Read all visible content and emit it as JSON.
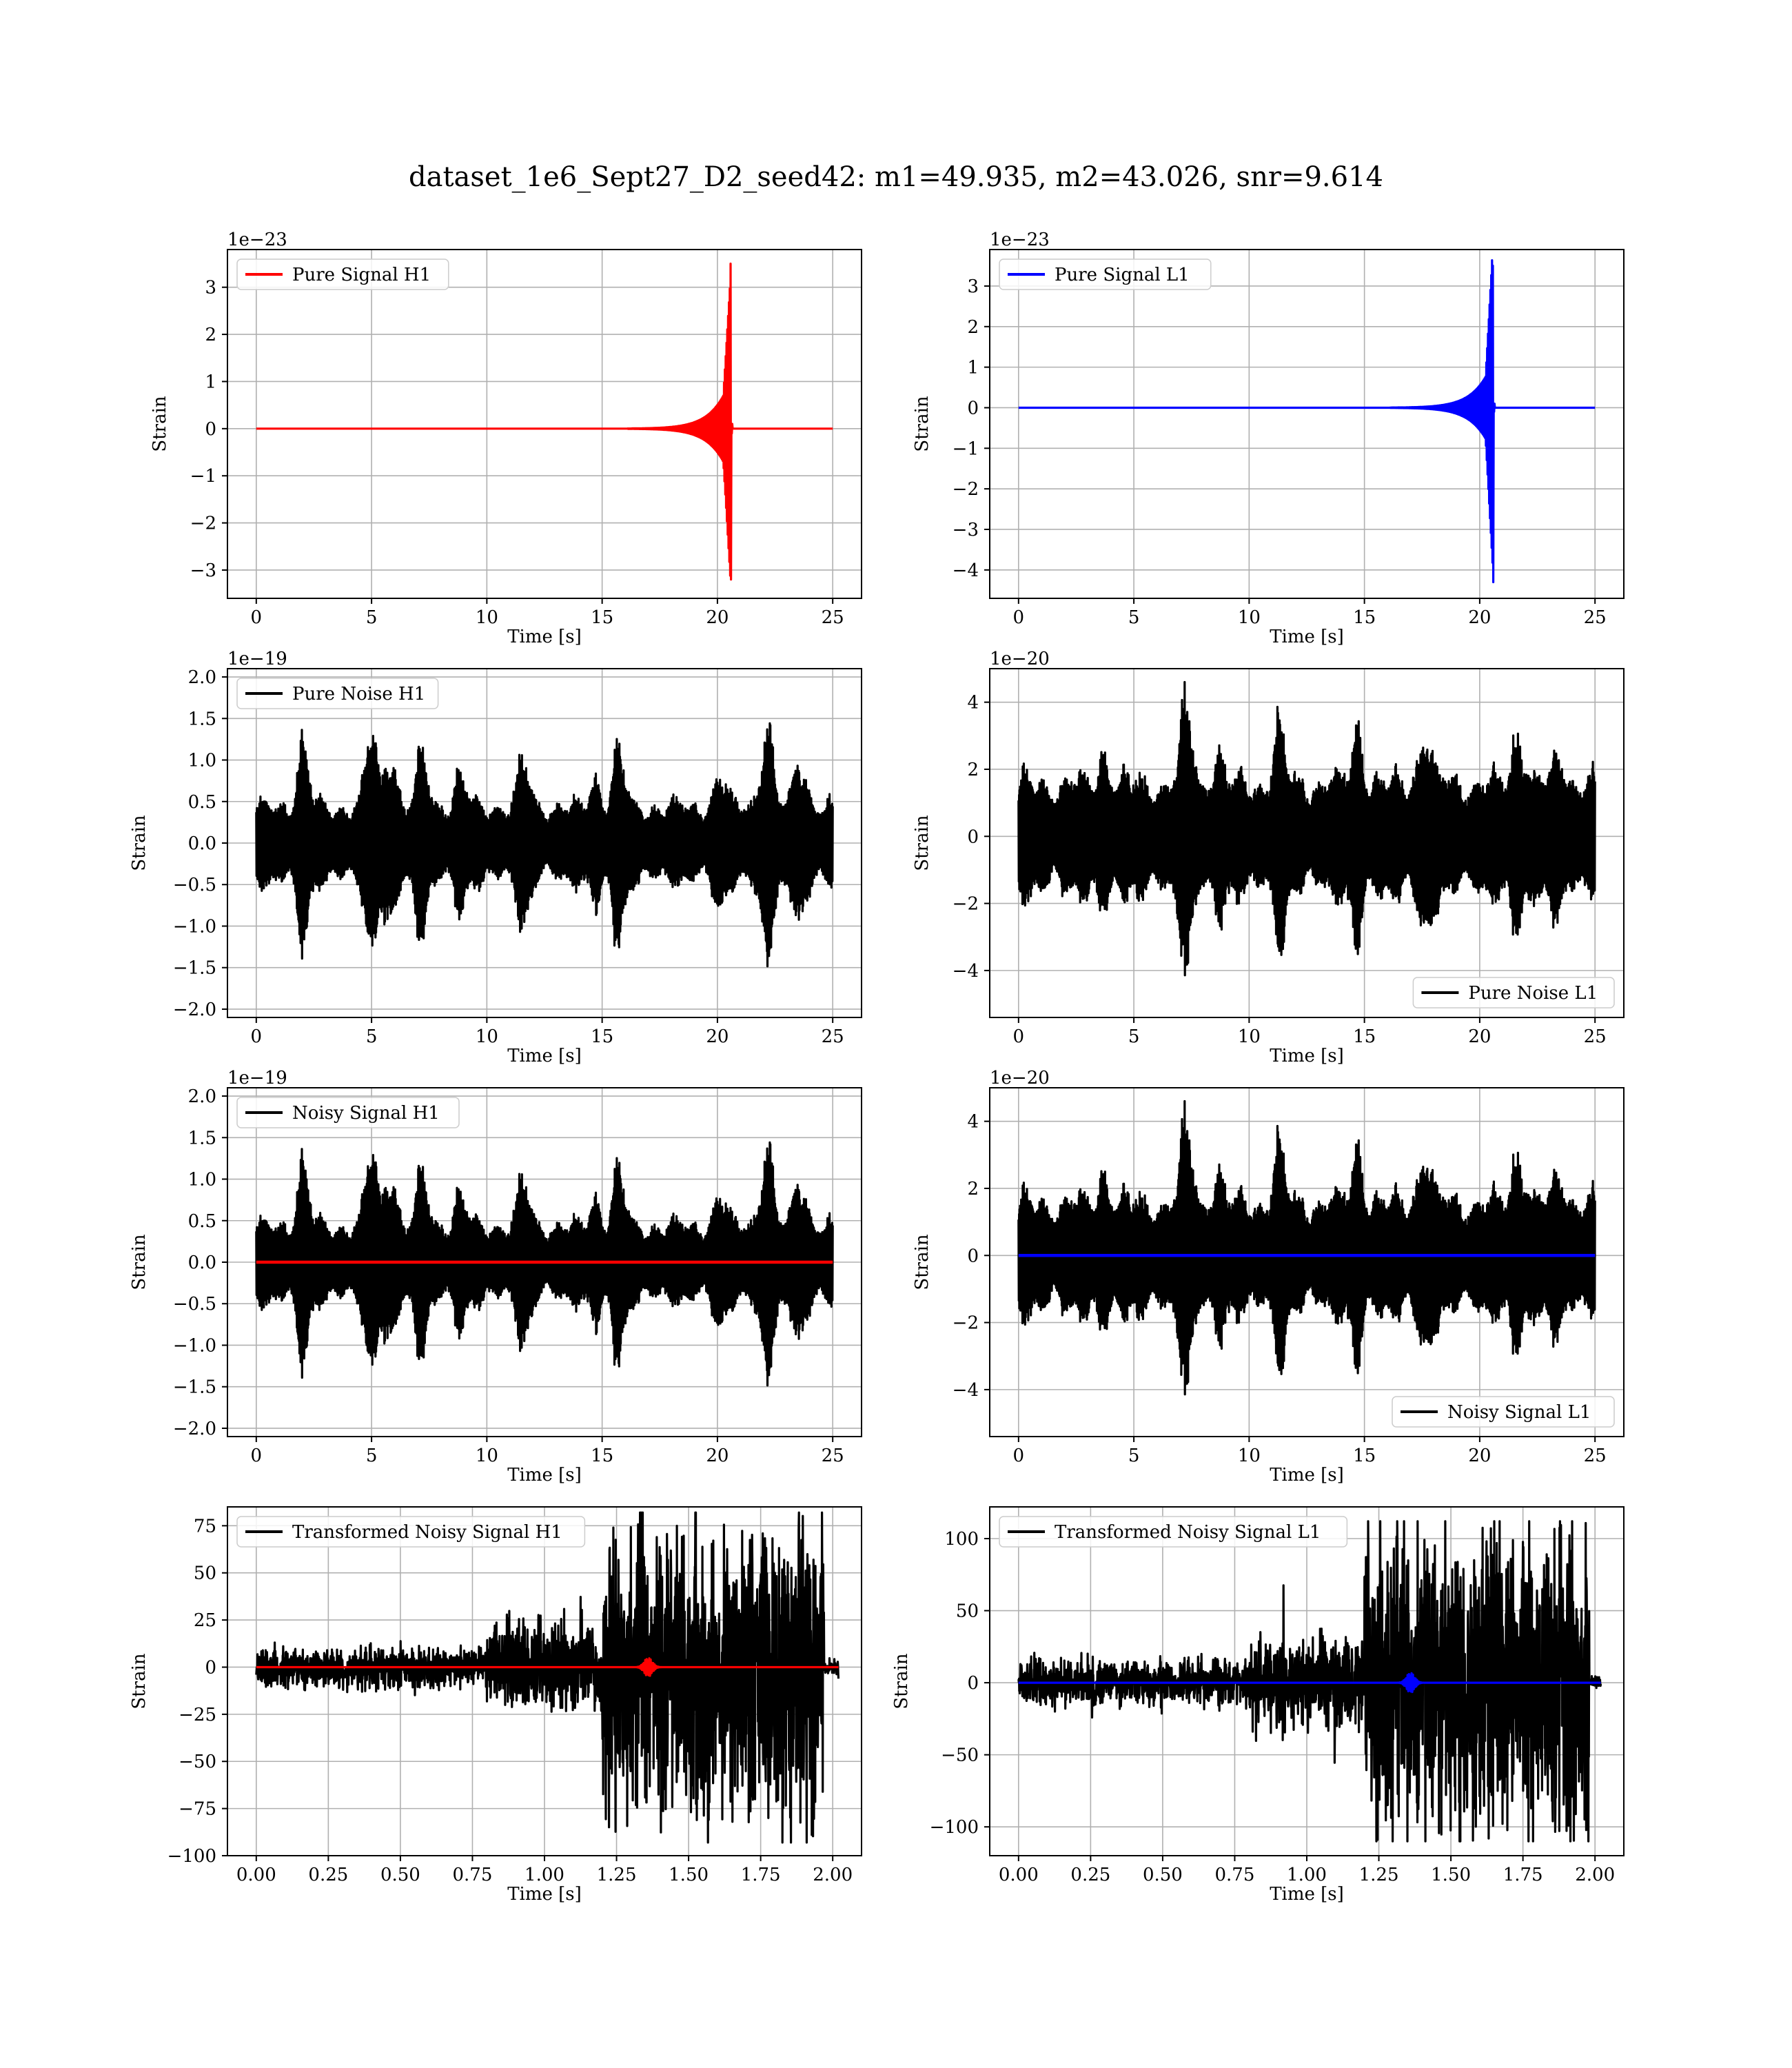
{
  "figure": {
    "title": "dataset_1e6_Sept27_D2_seed42: m1=49.935, m2=43.026, snr=9.614"
  },
  "chart_data": [
    {
      "type": "line",
      "title": "",
      "legend": [
        "Pure Signal H1"
      ],
      "legend_placement": "upper-left",
      "offset": "1e−23",
      "xlabel": "Time [s]",
      "ylabel": "Strain",
      "xlim": [
        -1.25,
        26.25
      ],
      "ylim": [
        -3.6,
        3.8
      ],
      "xticks": [
        0,
        5,
        10,
        15,
        20,
        25
      ],
      "xtick_labels": [
        "0",
        "5",
        "10",
        "15",
        "20",
        "25"
      ],
      "yticks": [
        -3,
        -2,
        -1,
        0,
        1,
        2,
        3
      ],
      "ytick_labels": [
        "−3",
        "−2",
        "−1",
        "0",
        "1",
        "2",
        "3"
      ],
      "grid": true,
      "series": [
        {
          "name": "Pure Signal H1",
          "color": "#ff0000",
          "kind": "chirp",
          "params": {
            "t0": 0,
            "t1": 25,
            "tc": 20.6,
            "peak_pos": 3.5,
            "peak_neg": -3.2,
            "plateau": 1.1,
            "ringdown": 0.1
          }
        }
      ]
    },
    {
      "type": "line",
      "title": "",
      "legend": [
        "Pure Signal L1"
      ],
      "legend_placement": "upper-left",
      "offset": "1e−23",
      "xlabel": "Time [s]",
      "ylabel": "Strain",
      "xlim": [
        -1.25,
        26.25
      ],
      "ylim": [
        -4.7,
        3.9
      ],
      "xticks": [
        0,
        5,
        10,
        15,
        20,
        25
      ],
      "xtick_labels": [
        "0",
        "5",
        "10",
        "15",
        "20",
        "25"
      ],
      "yticks": [
        -4,
        -3,
        -2,
        -1,
        0,
        1,
        2,
        3
      ],
      "ytick_labels": [
        "−4",
        "−3",
        "−2",
        "−1",
        "0",
        "1",
        "2",
        "3"
      ],
      "grid": true,
      "series": [
        {
          "name": "Pure Signal L1",
          "color": "#0000ff",
          "kind": "chirp",
          "params": {
            "t0": 0,
            "t1": 25,
            "tc": 20.6,
            "peak_pos": 3.5,
            "peak_neg": -4.3,
            "plateau": 1.2,
            "ringdown": 0.1
          }
        }
      ]
    },
    {
      "type": "line",
      "title": "",
      "legend": [
        "Pure Noise H1"
      ],
      "legend_placement": "upper-left",
      "offset": "1e−19",
      "xlabel": "Time [s]",
      "ylabel": "Strain",
      "xlim": [
        -1.25,
        26.25
      ],
      "ylim": [
        -2.1,
        2.1
      ],
      "xticks": [
        0,
        5,
        10,
        15,
        20,
        25
      ],
      "xtick_labels": [
        "0",
        "5",
        "10",
        "15",
        "20",
        "25"
      ],
      "yticks": [
        -2.0,
        -1.5,
        -1.0,
        -0.5,
        0.0,
        0.5,
        1.0,
        1.5,
        2.0
      ],
      "ytick_labels": [
        "−2.0",
        "−1.5",
        "−1.0",
        "−0.5",
        "0.0",
        "0.5",
        "1.0",
        "1.5",
        "2.0"
      ],
      "grid": true,
      "series": [
        {
          "name": "Pure Noise H1",
          "color": "#000000",
          "kind": "noise",
          "params": {
            "t0": 0,
            "t1": 25,
            "seed": 11,
            "env_base": 0.55,
            "env_peak": 1.95,
            "peaks": [
              [
                2.0,
                1.6
              ],
              [
                5.0,
                1.55
              ],
              [
                5.8,
                1.65
              ],
              [
                7.2,
                1.25
              ],
              [
                8.8,
                1.05
              ],
              [
                11.6,
                1.15
              ],
              [
                14.8,
                1.05
              ],
              [
                15.7,
                1.45
              ],
              [
                20.1,
                1.05
              ],
              [
                22.1,
                1.95
              ],
              [
                23.6,
                1.45
              ]
            ]
          }
        }
      ]
    },
    {
      "type": "line",
      "title": "",
      "legend": [
        "Pure Noise L1"
      ],
      "legend_placement": "lower-right",
      "offset": "1e−20",
      "xlabel": "Time [s]",
      "ylabel": "Strain",
      "xlim": [
        -1.25,
        26.25
      ],
      "ylim": [
        -5.4,
        5.0
      ],
      "xticks": [
        0,
        5,
        10,
        15,
        20,
        25
      ],
      "xtick_labels": [
        "0",
        "5",
        "10",
        "15",
        "20",
        "25"
      ],
      "yticks": [
        -4,
        -2,
        0,
        2,
        4
      ],
      "ytick_labels": [
        "−4",
        "−2",
        "0",
        "2",
        "4"
      ],
      "grid": true,
      "series": [
        {
          "name": "Pure Noise L1",
          "color": "#000000",
          "kind": "noise",
          "params": {
            "t0": 0,
            "t1": 25,
            "seed": 23,
            "env_base": 2.0,
            "env_peak": 4.6,
            "peaks": [
              [
                7.3,
                4.6
              ],
              [
                11.3,
                3.9
              ],
              [
                14.7,
                4.3
              ],
              [
                17.6,
                4.4
              ],
              [
                21.7,
                4.4
              ],
              [
                8.6,
                3.2
              ],
              [
                3.7,
                3.2
              ],
              [
                23.5,
                3.2
              ]
            ]
          }
        }
      ]
    },
    {
      "type": "line",
      "title": "",
      "legend": [
        "Noisy Signal H1"
      ],
      "legend_placement": "upper-left",
      "offset": "1e−19",
      "xlabel": "Time [s]",
      "ylabel": "Strain",
      "xlim": [
        -1.25,
        26.25
      ],
      "ylim": [
        -2.1,
        2.1
      ],
      "xticks": [
        0,
        5,
        10,
        15,
        20,
        25
      ],
      "xtick_labels": [
        "0",
        "5",
        "10",
        "15",
        "20",
        "25"
      ],
      "yticks": [
        -2.0,
        -1.5,
        -1.0,
        -0.5,
        0.0,
        0.5,
        1.0,
        1.5,
        2.0
      ],
      "ytick_labels": [
        "−2.0",
        "−1.5",
        "−1.0",
        "−0.5",
        "0.0",
        "0.5",
        "1.0",
        "1.5",
        "2.0"
      ],
      "grid": true,
      "series": [
        {
          "name": "Noisy Signal H1",
          "color": "#000000",
          "kind": "noise",
          "params": {
            "t0": 0,
            "t1": 25,
            "seed": 11,
            "env_base": 0.55,
            "env_peak": 1.95,
            "peaks": [
              [
                2.0,
                1.6
              ],
              [
                5.0,
                1.55
              ],
              [
                5.8,
                1.65
              ],
              [
                7.2,
                1.25
              ],
              [
                8.8,
                1.05
              ],
              [
                11.6,
                1.15
              ],
              [
                14.8,
                1.05
              ],
              [
                15.7,
                1.45
              ],
              [
                20.1,
                1.05
              ],
              [
                22.1,
                1.95
              ],
              [
                23.6,
                1.45
              ]
            ]
          }
        },
        {
          "name": "",
          "color": "#ff0000",
          "kind": "flat",
          "params": {
            "t0": 0,
            "t1": 25,
            "y": 0
          }
        }
      ]
    },
    {
      "type": "line",
      "title": "",
      "legend": [
        "Noisy Signal L1"
      ],
      "legend_placement": "lower-right",
      "offset": "1e−20",
      "xlabel": "Time [s]",
      "ylabel": "Strain",
      "xlim": [
        -1.25,
        26.25
      ],
      "ylim": [
        -5.4,
        5.0
      ],
      "xticks": [
        0,
        5,
        10,
        15,
        20,
        25
      ],
      "xtick_labels": [
        "0",
        "5",
        "10",
        "15",
        "20",
        "25"
      ],
      "yticks": [
        -4,
        -2,
        0,
        2,
        4
      ],
      "ytick_labels": [
        "−4",
        "−2",
        "0",
        "2",
        "4"
      ],
      "grid": true,
      "series": [
        {
          "name": "Noisy Signal L1",
          "color": "#000000",
          "kind": "noise",
          "params": {
            "t0": 0,
            "t1": 25,
            "seed": 23,
            "env_base": 2.0,
            "env_peak": 4.6,
            "peaks": [
              [
                7.3,
                4.6
              ],
              [
                11.3,
                3.9
              ],
              [
                14.7,
                4.3
              ],
              [
                17.6,
                4.4
              ],
              [
                21.7,
                4.4
              ],
              [
                8.6,
                3.2
              ],
              [
                3.7,
                3.2
              ],
              [
                23.5,
                3.2
              ]
            ]
          }
        },
        {
          "name": "",
          "color": "#0000ff",
          "kind": "flat",
          "params": {
            "t0": 0,
            "t1": 25,
            "y": 0
          }
        }
      ]
    },
    {
      "type": "line",
      "title": "",
      "legend": [
        "Transformed Noisy Signal H1"
      ],
      "legend_placement": "upper-left",
      "offset": "",
      "xlabel": "Time [s]",
      "ylabel": "Strain",
      "xlim": [
        -0.1,
        2.1
      ],
      "ylim": [
        -100,
        85
      ],
      "xticks": [
        0.0,
        0.25,
        0.5,
        0.75,
        1.0,
        1.25,
        1.5,
        1.75,
        2.0
      ],
      "xtick_labels": [
        "0.00",
        "0.25",
        "0.50",
        "0.75",
        "1.00",
        "1.25",
        "1.50",
        "1.75",
        "2.00"
      ],
      "yticks": [
        -100,
        -75,
        -50,
        -25,
        0,
        25,
        50,
        75
      ],
      "ytick_labels": [
        "−100",
        "−75",
        "−50",
        "−25",
        "0",
        "25",
        "50",
        "75"
      ],
      "grid": true,
      "series": [
        {
          "name": "Transformed Noisy Signal H1",
          "color": "#000000",
          "kind": "whitened",
          "params": {
            "t0": 0,
            "t1": 2.02,
            "seed": 57,
            "segments": [
              [
                0,
                0.8,
                8
              ],
              [
                0.8,
                1.2,
                18
              ],
              [
                1.2,
                1.97,
                62
              ],
              [
                1.97,
                2.02,
                3
              ]
            ],
            "min": -93,
            "max": 82
          }
        },
        {
          "name": "",
          "color": "#ff0000",
          "kind": "burst",
          "params": {
            "t0": 0,
            "t1": 2.02,
            "tc": 1.36,
            "amp": 5,
            "width": 0.02
          }
        }
      ]
    },
    {
      "type": "line",
      "title": "",
      "legend": [
        "Transformed Noisy Signal L1"
      ],
      "legend_placement": "upper-left",
      "offset": "",
      "xlabel": "Time [s]",
      "ylabel": "Strain",
      "xlim": [
        -0.1,
        2.1
      ],
      "ylim": [
        -120,
        122
      ],
      "xticks": [
        0.0,
        0.25,
        0.5,
        0.75,
        1.0,
        1.25,
        1.5,
        1.75,
        2.0
      ],
      "xtick_labels": [
        "0.00",
        "0.25",
        "0.50",
        "0.75",
        "1.00",
        "1.25",
        "1.50",
        "1.75",
        "2.00"
      ],
      "yticks": [
        -100,
        -50,
        0,
        50,
        100
      ],
      "ytick_labels": [
        "−100",
        "−50",
        "0",
        "50",
        "100"
      ],
      "grid": true,
      "series": [
        {
          "name": "Transformed Noisy Signal L1",
          "color": "#000000",
          "kind": "whitened",
          "params": {
            "t0": 0,
            "t1": 2.02,
            "seed": 91,
            "segments": [
              [
                0,
                0.8,
                12
              ],
              [
                0.8,
                1.2,
                24
              ],
              [
                1.2,
                1.98,
                82
              ],
              [
                1.98,
                2.02,
                4
              ]
            ],
            "min": -110,
            "max": 112
          }
        },
        {
          "name": "",
          "color": "#0000ff",
          "kind": "burst",
          "params": {
            "t0": 0,
            "t1": 2.02,
            "tc": 1.36,
            "amp": 7,
            "width": 0.02
          }
        }
      ]
    }
  ]
}
